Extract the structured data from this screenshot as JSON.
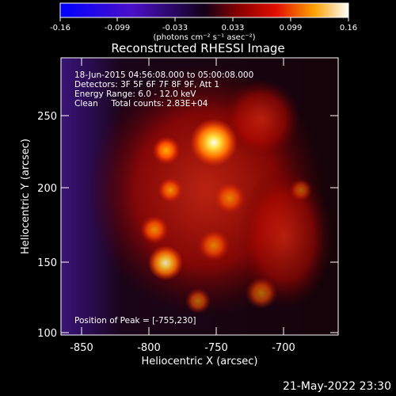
{
  "colorbar": {
    "ticks": [
      "-0.16",
      "-0.099",
      "-0.033",
      "0.033",
      "0.099",
      "0.16"
    ],
    "unit_label": "(photons cm⁻² s⁻¹ asec⁻²)"
  },
  "title": "Reconstructed RHESSI Image",
  "info": {
    "line1": "18-Jun-2015 04:56:08.000 to 05:00:08.000",
    "line2": "Detectors: 3F 5F 6F 7F 8F 9F, Att 1",
    "line3": "Energy Range: 6.0 - 12.0 keV",
    "line4": "Clean     Total counts: 2.83E+04"
  },
  "peak_text": "Position of Peak = [-755,230]",
  "axes": {
    "xlabel": "Heliocentric X (arcsec)",
    "ylabel": "Heliocentric Y (arcsec)",
    "xticks": [
      "-850",
      "-800",
      "-750",
      "-700"
    ],
    "yticks": [
      "100",
      "150",
      "200",
      "250"
    ]
  },
  "timestamp": "21-May-2022 23:30"
}
